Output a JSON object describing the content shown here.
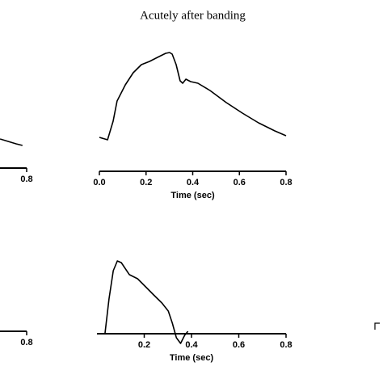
{
  "chart_data": [
    {
      "type": "line",
      "title": "Acutely after banding",
      "xlabel": "Time (sec)",
      "xlim": [
        0,
        0.8
      ],
      "xticks": [
        {
          "value": 0,
          "label": "0.0"
        },
        0.2,
        0.4,
        0.6,
        0.8
      ],
      "ylim": [
        0,
        100
      ],
      "series": [
        {
          "color": "#000000",
          "x": [
            0.0,
            0.035,
            0.059,
            0.076,
            0.111,
            0.145,
            0.18,
            0.215,
            0.249,
            0.284,
            0.301,
            0.312,
            0.329,
            0.346,
            0.357,
            0.371,
            0.391,
            0.422,
            0.474,
            0.544,
            0.613,
            0.682,
            0.752,
            0.8
          ],
          "values": [
            8.3,
            5.8,
            25,
            45.8,
            62.5,
            75,
            83.3,
            86.7,
            90.8,
            95,
            95.8,
            94.2,
            83.3,
            66.7,
            64.2,
            68.3,
            65.8,
            64.2,
            56.7,
            44.2,
            33.3,
            23.3,
            15,
            10
          ]
        }
      ]
    },
    {
      "type": "line",
      "xlabel": "Time (sec)",
      "xlim": [
        0,
        0.8
      ],
      "xticks": [
        0.2,
        0.4,
        0.6,
        0.8
      ],
      "ylim": [
        0,
        100
      ],
      "series": [
        {
          "color": "#000000",
          "x": [
            0.034,
            0.051,
            0.069,
            0.086,
            0.103,
            0.137,
            0.172,
            0.206,
            0.24,
            0.275,
            0.302,
            0.319,
            0.336,
            0.354,
            0.371,
            0.385
          ],
          "values": [
            11.4,
            52.4,
            85.7,
            97.1,
            95.2,
            81,
            76.2,
            66.7,
            57.1,
            47.6,
            38.1,
            23.8,
            6.7,
            0,
            9.5,
            14.3
          ]
        }
      ]
    },
    {
      "type": "line",
      "xlim": [
        0,
        0.8
      ],
      "xticks": [
        0.8
      ],
      "ylim": [
        0,
        100
      ],
      "series": [
        {
          "color": "#000000",
          "x": [
            0.687,
            0.721,
            0.755,
            0.782
          ],
          "values": [
            6.7,
            4.2,
            1.7,
            0
          ]
        }
      ]
    },
    {
      "type": "line",
      "xlim": [
        0,
        0.8
      ],
      "xticks": [
        0.8
      ],
      "ylim": [
        0,
        100
      ],
      "series": []
    }
  ]
}
